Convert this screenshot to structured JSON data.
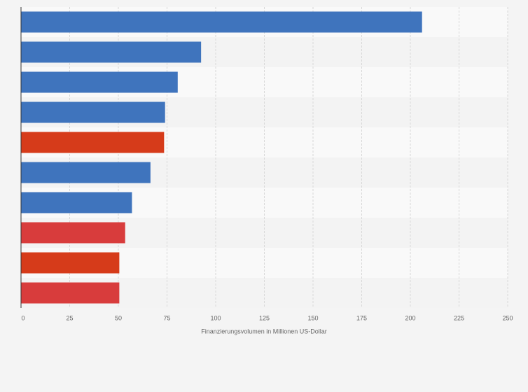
{
  "chart_data": {
    "type": "bar",
    "orientation": "horizontal",
    "x_label": "Finanzierungsvolumen in Millionen US-Dollar",
    "categories": [
      null,
      null,
      null,
      null,
      null,
      null,
      null,
      null,
      null,
      null
    ],
    "values": [
      206,
      92.5,
      80.5,
      74,
      73.5,
      66.5,
      57,
      53.5,
      50.5,
      50.5
    ],
    "colors": [
      "#3f74bd",
      "#3f74bd",
      "#3f74bd",
      "#3f74bd",
      "#d63b1a",
      "#3f74bd",
      "#3f74bd",
      "#d83c3c",
      "#d63b1a",
      "#d83c3c"
    ],
    "xlim": [
      0,
      250
    ],
    "xticks": [
      0,
      25,
      50,
      75,
      100,
      125,
      150,
      175,
      200,
      225,
      250
    ],
    "grid": true
  }
}
